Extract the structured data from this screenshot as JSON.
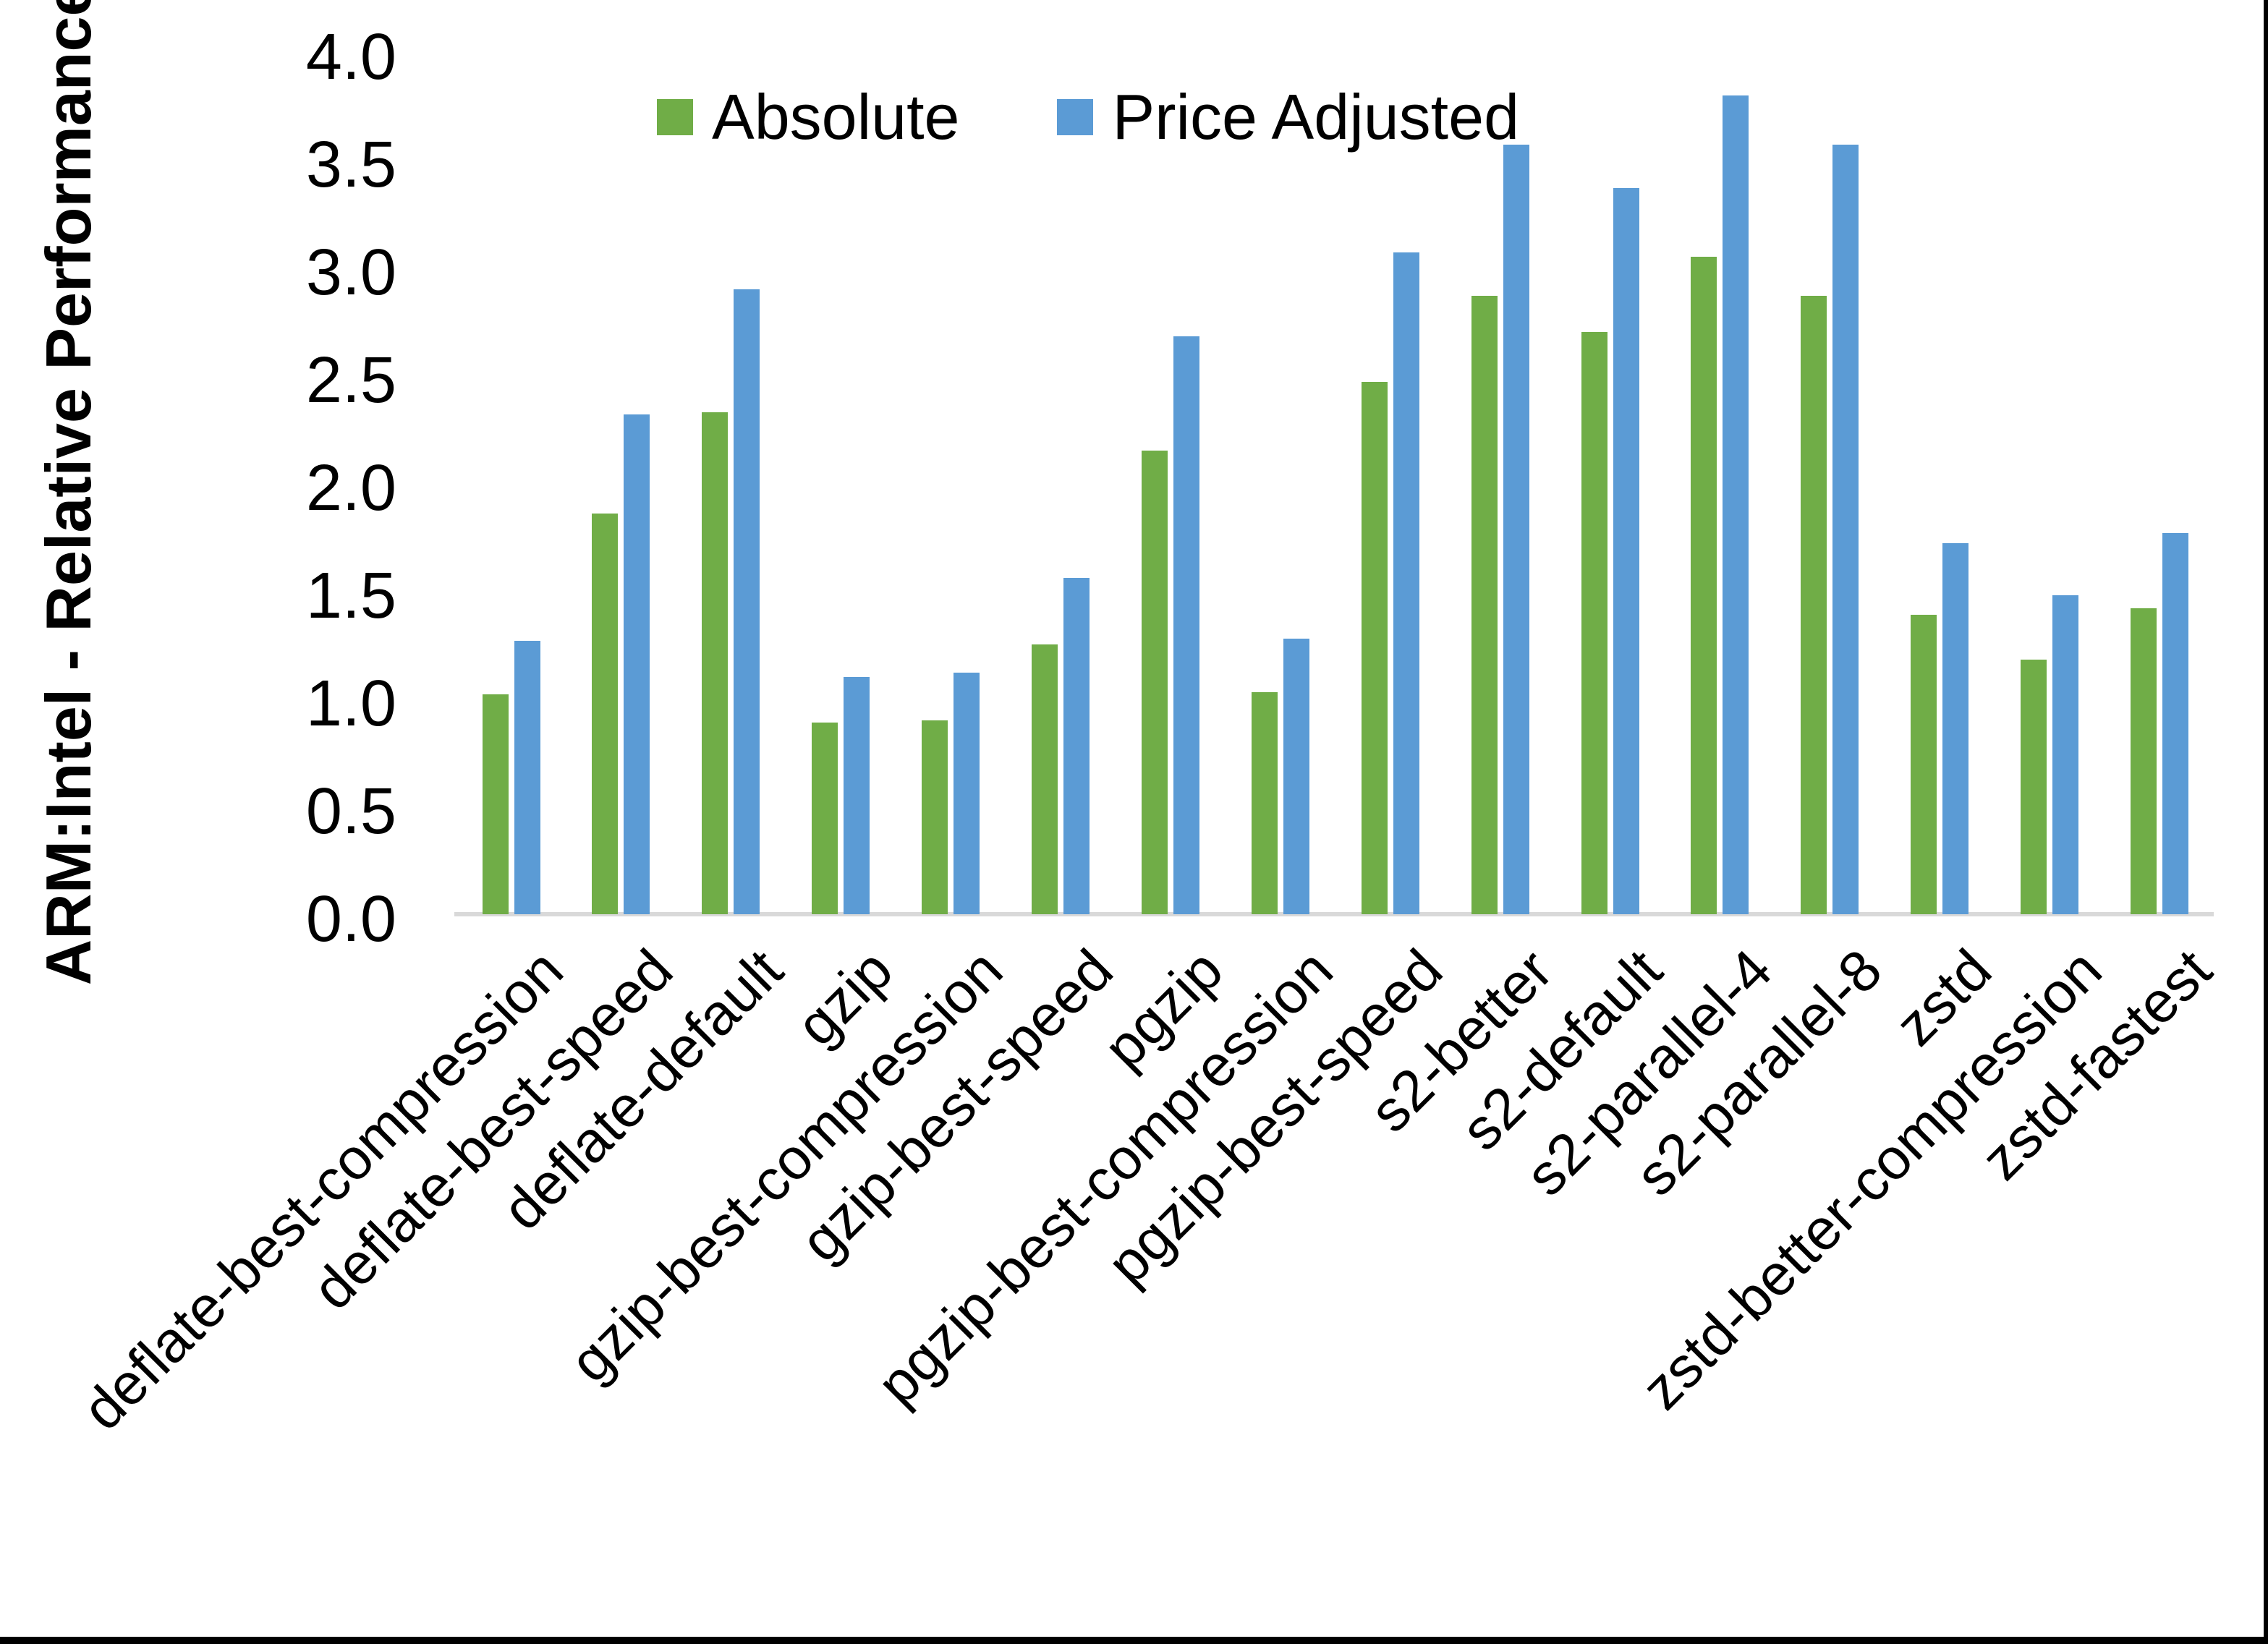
{
  "chart_data": {
    "type": "bar",
    "title": "",
    "ylabel": "ARM:Intel - Relative Performance",
    "xlabel": "",
    "ylim": [
      0.0,
      4.0
    ],
    "ytick_step": 0.5,
    "yticks": [
      "0.0",
      "0.5",
      "1.0",
      "1.5",
      "2.0",
      "2.5",
      "3.0",
      "3.5",
      "4.0"
    ],
    "grid": false,
    "legend_position": "top-center",
    "axis_line_color": "#d9d9d9",
    "text_color": "#000000",
    "frame_border_color": "#000000",
    "categories": [
      "deflate-best-compression",
      "deflate-best-speed",
      "deflate-default",
      "gzip",
      "gzip-best-compression",
      "gzip-best-speed",
      "pgzip",
      "pgzip-best-compression",
      "pgzip-best-speed",
      "s2-better",
      "s2-default",
      "s2-parallel-4",
      "s2-parallel-8",
      "zstd",
      "zstd-better-compression",
      "zstd-fastest"
    ],
    "series": [
      {
        "name": "Absolute",
        "color": "#70AD47",
        "values": [
          1.02,
          1.86,
          2.33,
          0.89,
          0.9,
          1.25,
          2.15,
          1.03,
          2.47,
          2.87,
          2.7,
          3.05,
          2.87,
          1.39,
          1.18,
          1.42
        ]
      },
      {
        "name": "Price Adjusted",
        "color": "#5B9BD5",
        "values": [
          1.27,
          2.32,
          2.9,
          1.1,
          1.12,
          1.56,
          2.68,
          1.28,
          3.07,
          3.57,
          3.37,
          3.8,
          3.57,
          1.72,
          1.48,
          1.77
        ]
      }
    ]
  }
}
